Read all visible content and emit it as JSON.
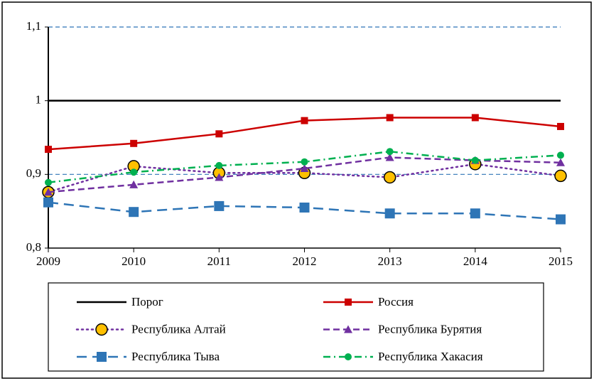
{
  "chart_data": {
    "type": "line",
    "x": [
      2009,
      2010,
      2011,
      2012,
      2013,
      2014,
      2015
    ],
    "xlim": [
      2009,
      2015
    ],
    "xticks": [
      2009,
      2010,
      2011,
      2012,
      2013,
      2014,
      2015
    ],
    "ylim": [
      0.8,
      1.1
    ],
    "yticks": [
      {
        "value": 0.8,
        "label": "0,8"
      },
      {
        "value": 0.9,
        "label": "0,9"
      },
      1,
      {
        "value": 1.1,
        "label": "1,1"
      }
    ],
    "grid": true,
    "grid_color": "#2e75b6",
    "legend": "bottom",
    "series": [
      {
        "name": "Порог",
        "color": "#000000",
        "dash": "solid",
        "marker": "none",
        "values": [
          1,
          1,
          1,
          1,
          1,
          1,
          1
        ]
      },
      {
        "name": "Россия",
        "color": "#cc0000",
        "dash": "solid",
        "marker": "square",
        "values": [
          0.934,
          0.942,
          0.955,
          0.973,
          0.977,
          0.977,
          0.965
        ]
      },
      {
        "name": "Республика Алтай",
        "color": "#7030a0",
        "dash": "dot",
        "marker": "big-circle",
        "marker_color": "#ffc000",
        "values": [
          0.876,
          0.911,
          0.902,
          0.902,
          0.896,
          0.914,
          0.898
        ]
      },
      {
        "name": "Республика Бурятия",
        "color": "#7030a0",
        "dash": "dash",
        "marker": "triangle",
        "values": [
          0.876,
          0.886,
          0.896,
          0.908,
          0.923,
          0.919,
          0.916
        ]
      },
      {
        "name": "Республика Тыва",
        "color": "#2e75b6",
        "dash": "longdash",
        "marker": "big-square",
        "values": [
          0.862,
          0.849,
          0.857,
          0.855,
          0.847,
          0.847,
          0.839
        ]
      },
      {
        "name": "Республика Хакасия",
        "color": "#00b050",
        "dash": "dashdot",
        "marker": "circle",
        "values": [
          0.889,
          0.903,
          0.912,
          0.917,
          0.931,
          0.919,
          0.926
        ]
      }
    ]
  }
}
